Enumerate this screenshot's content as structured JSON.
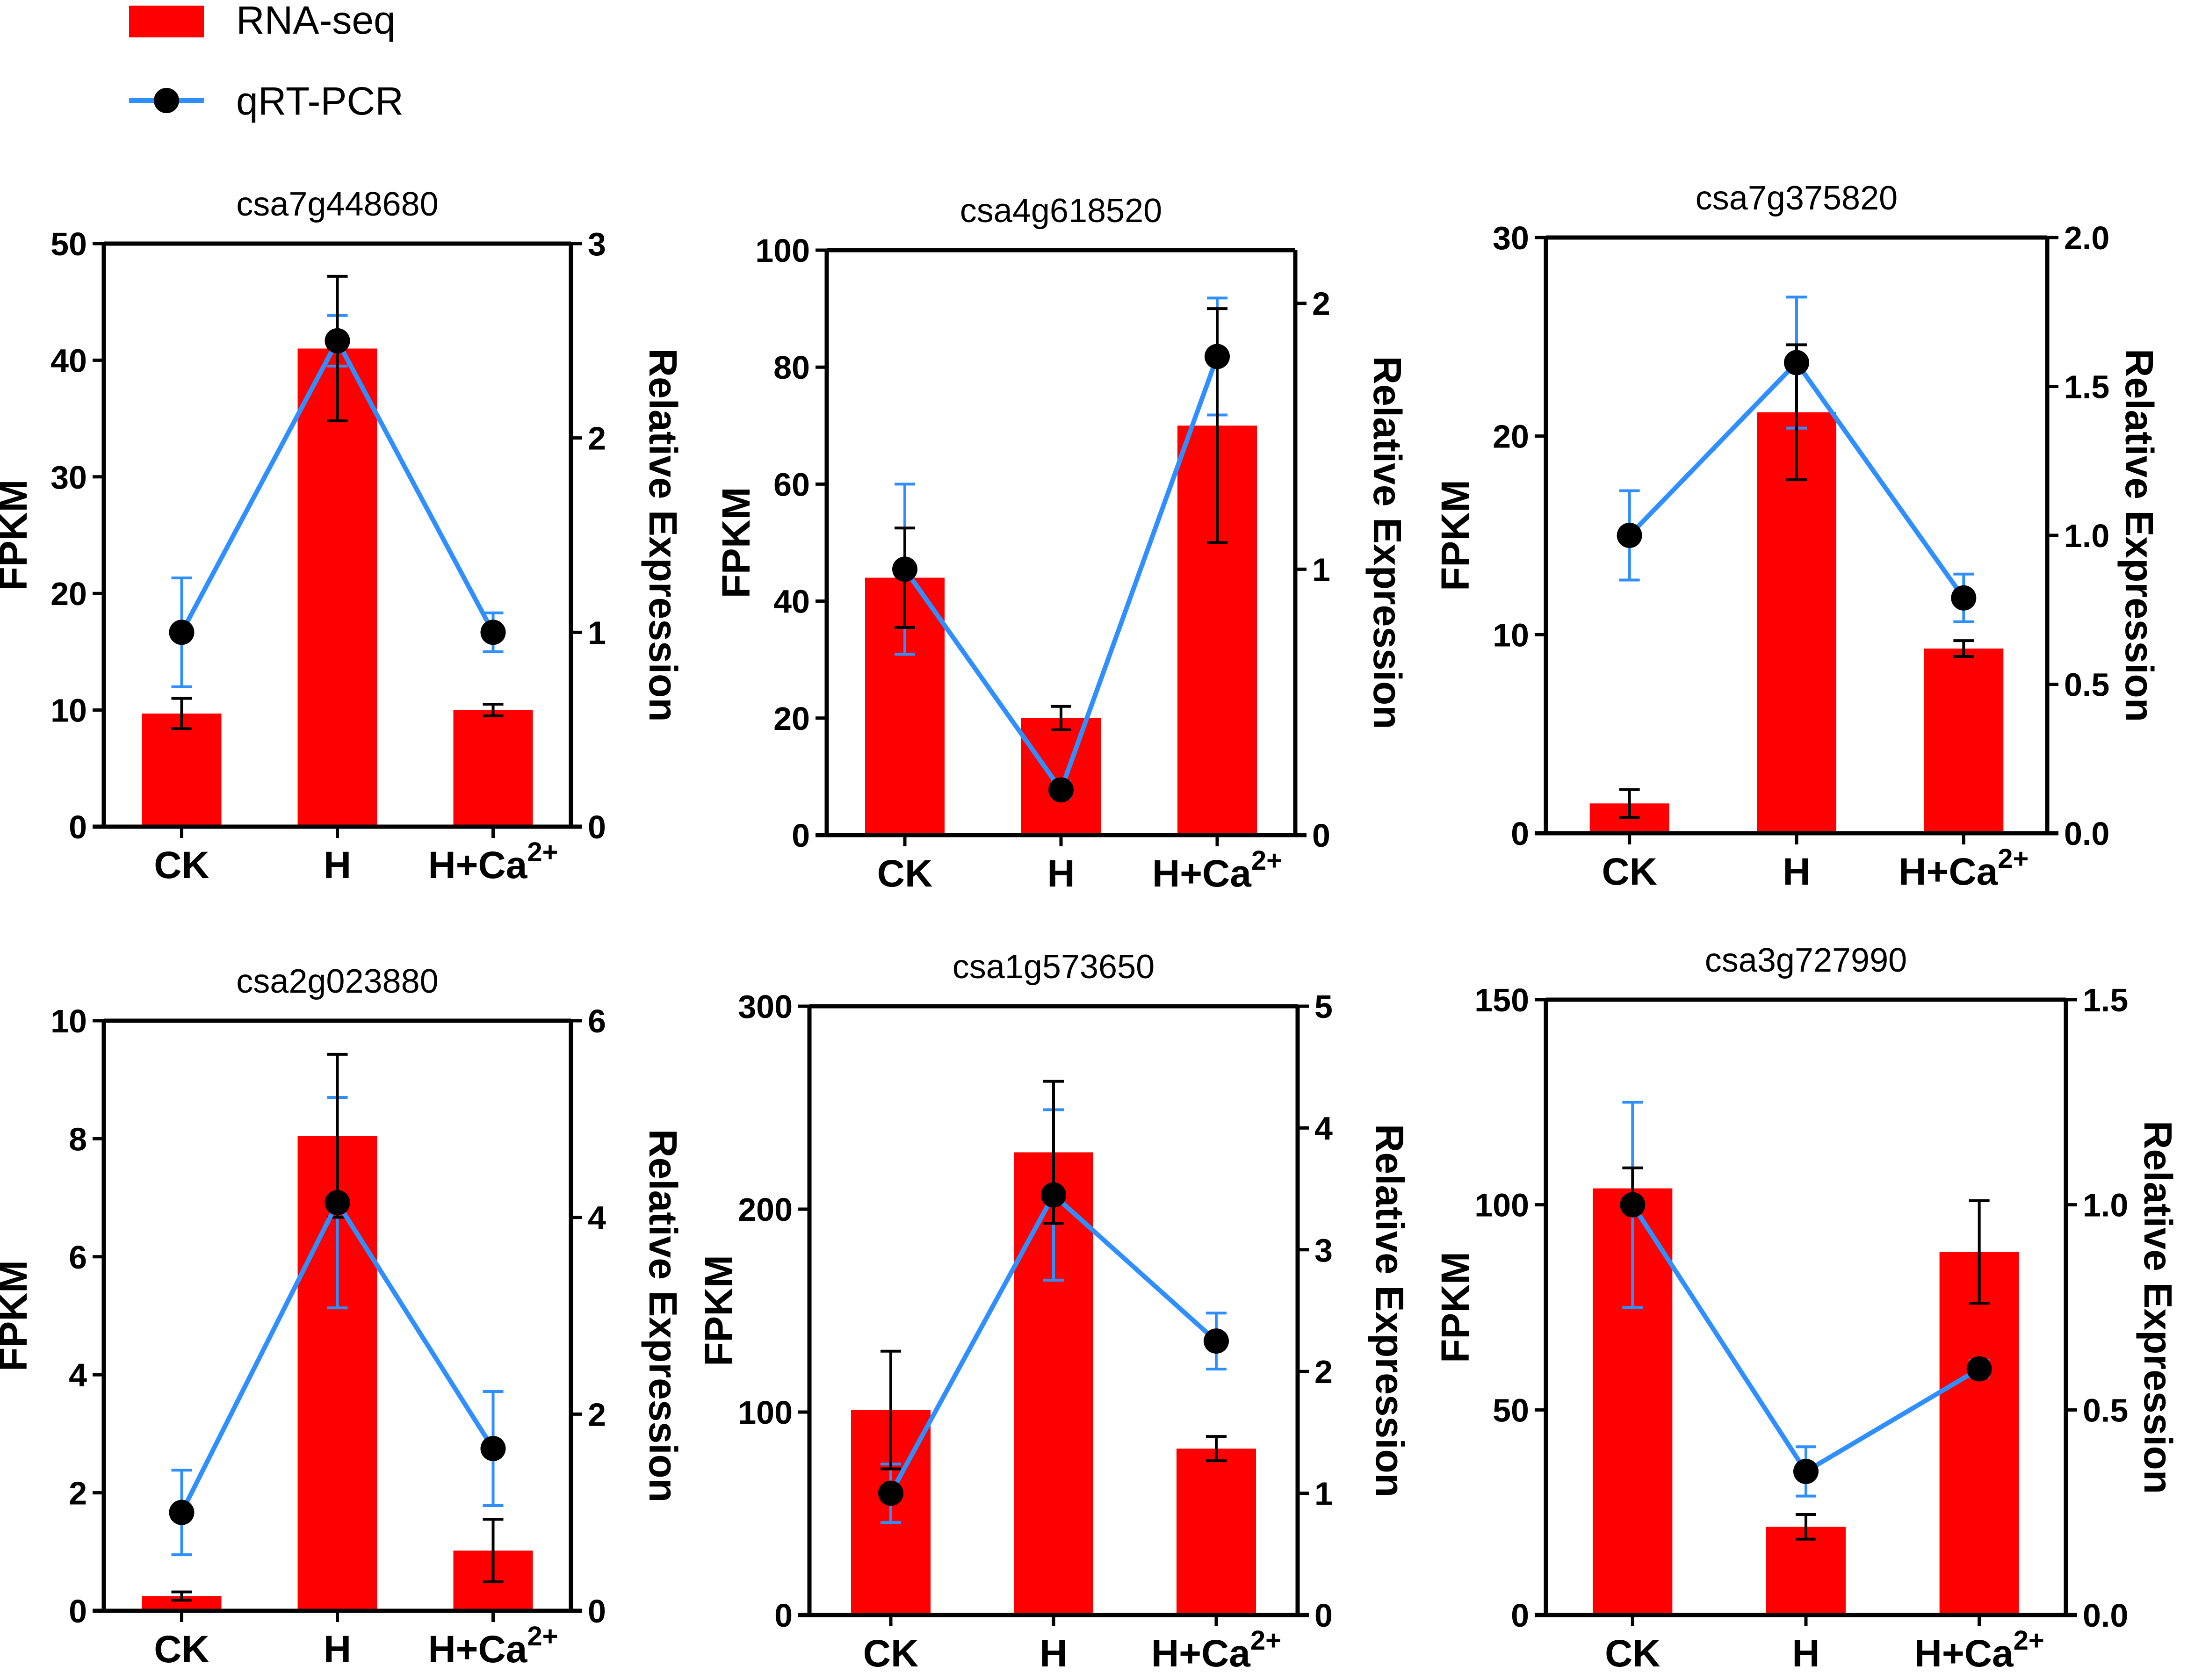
{
  "colors": {
    "bar": "#ff0000",
    "line": "#2f8fff",
    "marker": "#000000",
    "axis": "#000000"
  },
  "legend": {
    "bar_label": "RNA-seq",
    "line_label": "qRT-PCR"
  },
  "chart_data": [
    {
      "type": "bar",
      "title": "csa7g448680",
      "categories": [
        "CK",
        "H",
        "H+Ca"
      ],
      "category_superscripts": [
        "",
        "",
        "2+"
      ],
      "ylabel": "FPKM",
      "ylim": [
        0,
        50
      ],
      "yticks": [
        0,
        10,
        20,
        30,
        40,
        50
      ],
      "y2label": "Relative Expression",
      "y2lim": [
        0,
        3
      ],
      "y2ticks": [
        "0",
        "1",
        "2",
        "3"
      ],
      "series": [
        {
          "name": "RNA-seq",
          "type": "bar",
          "axis": "left",
          "values": [
            9.7,
            41.0,
            10.0
          ],
          "errors": [
            1.3,
            6.2,
            0.5
          ]
        },
        {
          "name": "qRT-PCR",
          "type": "line",
          "axis": "right",
          "values": [
            1.0,
            2.5,
            1.0
          ],
          "errors": [
            0.28,
            0.13,
            0.1
          ]
        }
      ]
    },
    {
      "type": "bar",
      "title": "csa4g618520",
      "categories": [
        "CK",
        "H",
        "H+Ca"
      ],
      "category_superscripts": [
        "",
        "",
        "2+"
      ],
      "ylabel": "FPKM",
      "ylim": [
        0,
        100
      ],
      "yticks": [
        0,
        20,
        40,
        60,
        80,
        100
      ],
      "y2label": "Relative Expression",
      "y2lim": [
        0,
        2.2
      ],
      "y2ticks": [
        "0",
        "1",
        "2"
      ],
      "series": [
        {
          "name": "RNA-seq",
          "type": "bar",
          "axis": "left",
          "values": [
            44,
            20,
            70
          ],
          "errors": [
            8.5,
            2.0,
            20.0
          ]
        },
        {
          "name": "qRT-PCR",
          "type": "line",
          "axis": "right",
          "values": [
            1.0,
            0.17,
            1.8
          ],
          "errors": [
            0.32,
            0.03,
            0.22
          ]
        }
      ]
    },
    {
      "type": "bar",
      "title": "csa7g375820",
      "categories": [
        "CK",
        "H",
        "H+Ca"
      ],
      "category_superscripts": [
        "",
        "",
        "2+"
      ],
      "ylabel": "FPKM",
      "ylim": [
        0,
        30
      ],
      "yticks": [
        0,
        10,
        20,
        30
      ],
      "y2label": "Relative Expression",
      "y2lim": [
        0,
        2.0
      ],
      "y2ticks": [
        "0.0",
        "0.5",
        "1.0",
        "1.5",
        "2.0"
      ],
      "series": [
        {
          "name": "RNA-seq",
          "type": "bar",
          "axis": "left",
          "values": [
            1.5,
            21.2,
            9.3
          ],
          "errors": [
            0.7,
            3.4,
            0.4
          ]
        },
        {
          "name": "qRT-PCR",
          "type": "line",
          "axis": "right",
          "values": [
            1.0,
            1.58,
            0.79
          ],
          "errors": [
            0.15,
            0.22,
            0.08
          ]
        }
      ]
    },
    {
      "type": "bar",
      "title": "csa2g023880",
      "categories": [
        "CK",
        "H",
        "H+Ca"
      ],
      "category_superscripts": [
        "",
        "",
        "2+"
      ],
      "ylabel": "FPKM",
      "ylim": [
        0,
        10
      ],
      "yticks": [
        0,
        2,
        4,
        6,
        8,
        10
      ],
      "y2label": "Relative Expression",
      "y2lim": [
        0,
        6
      ],
      "y2ticks": [
        "0",
        "2",
        "4",
        "6"
      ],
      "series": [
        {
          "name": "RNA-seq",
          "type": "bar",
          "axis": "left",
          "values": [
            0.25,
            8.05,
            1.02
          ],
          "errors": [
            0.07,
            1.38,
            0.53
          ]
        },
        {
          "name": "qRT-PCR",
          "type": "line",
          "axis": "right",
          "values": [
            1.0,
            4.15,
            1.65
          ],
          "errors": [
            0.43,
            1.07,
            0.58
          ]
        }
      ]
    },
    {
      "type": "bar",
      "title": "csa1g573650",
      "categories": [
        "CK",
        "H",
        "H+Ca"
      ],
      "category_superscripts": [
        "",
        "",
        "2+"
      ],
      "ylabel": "FPKM",
      "ylim": [
        0,
        300
      ],
      "yticks": [
        0,
        100,
        200,
        300
      ],
      "y2label": "Relative Expression",
      "y2lim": [
        0,
        5
      ],
      "y2ticks": [
        "0",
        "1",
        "2",
        "3",
        "4",
        "5"
      ],
      "series": [
        {
          "name": "RNA-seq",
          "type": "bar",
          "axis": "left",
          "values": [
            101,
            228,
            82
          ],
          "errors": [
            29,
            35,
            6
          ]
        },
        {
          "name": "qRT-PCR",
          "type": "line",
          "axis": "right",
          "values": [
            1.0,
            3.45,
            2.25
          ],
          "errors": [
            0.24,
            0.7,
            0.23
          ]
        }
      ]
    },
    {
      "type": "bar",
      "title": "csa3g727990",
      "categories": [
        "CK",
        "H",
        "H+Ca"
      ],
      "category_superscripts": [
        "",
        "",
        "2+"
      ],
      "ylabel": "FPKM",
      "ylim": [
        0,
        150
      ],
      "yticks": [
        0,
        50,
        100,
        150
      ],
      "y2label": "Relative Expression",
      "y2lim": [
        0,
        1.5
      ],
      "y2ticks": [
        "0.0",
        "0.5",
        "1.0",
        "1.5"
      ],
      "series": [
        {
          "name": "RNA-seq",
          "type": "bar",
          "axis": "left",
          "values": [
            104,
            21.5,
            88.5
          ],
          "errors": [
            5,
            3,
            12.5
          ]
        },
        {
          "name": "qRT-PCR",
          "type": "line",
          "axis": "right",
          "values": [
            1.0,
            0.35,
            0.6
          ],
          "errors": [
            0.25,
            0.06,
            0.02
          ]
        }
      ]
    }
  ]
}
